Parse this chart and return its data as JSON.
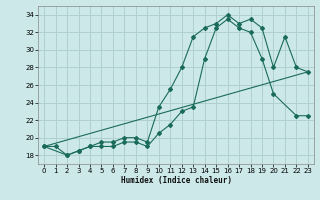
{
  "xlabel": "Humidex (Indice chaleur)",
  "ylabel": "",
  "xlim": [
    -0.5,
    23.5
  ],
  "ylim": [
    17.0,
    35.0
  ],
  "background_color": "#cce8e8",
  "grid_color": "#b0d0d0",
  "line_color": "#1a6b5a",
  "xticks": [
    0,
    1,
    2,
    3,
    4,
    5,
    6,
    7,
    8,
    9,
    10,
    11,
    12,
    13,
    14,
    15,
    16,
    17,
    18,
    19,
    20,
    21,
    22,
    23
  ],
  "yticks": [
    18,
    20,
    22,
    24,
    26,
    28,
    30,
    32,
    34
  ],
  "line1_x": [
    0,
    1,
    2,
    3,
    4,
    5,
    6,
    7,
    8,
    9,
    10,
    11,
    12,
    13,
    14,
    15,
    16,
    17,
    18,
    19,
    20,
    21,
    22,
    23
  ],
  "line1_y": [
    19.0,
    19.0,
    18.0,
    18.5,
    19.0,
    19.5,
    19.5,
    20.0,
    20.0,
    19.5,
    23.5,
    25.5,
    28.0,
    31.5,
    32.5,
    33.0,
    34.0,
    33.0,
    33.5,
    32.5,
    28.0,
    31.5,
    28.0,
    27.5
  ],
  "line2_x": [
    0,
    2,
    3,
    4,
    5,
    6,
    7,
    8,
    9,
    10,
    11,
    12,
    13,
    14,
    15,
    16,
    17,
    18,
    19,
    20,
    22,
    23
  ],
  "line2_y": [
    19.0,
    18.0,
    18.5,
    19.0,
    19.0,
    19.0,
    19.5,
    19.5,
    19.0,
    20.5,
    21.5,
    23.0,
    23.5,
    29.0,
    32.5,
    33.5,
    32.5,
    32.0,
    29.0,
    25.0,
    22.5,
    22.5
  ],
  "line3_x": [
    0,
    23
  ],
  "line3_y": [
    19.0,
    27.5
  ]
}
